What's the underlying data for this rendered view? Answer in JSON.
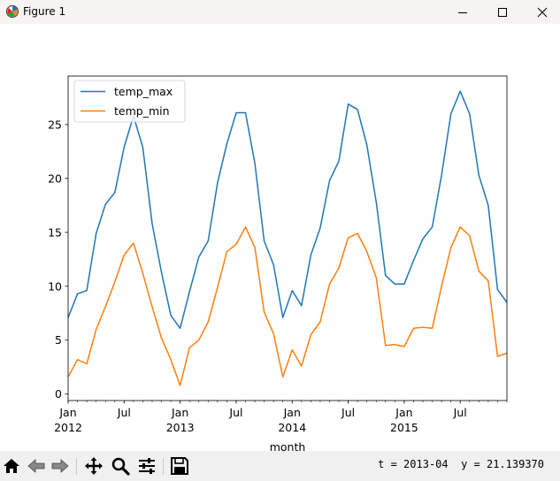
{
  "window": {
    "title": "Figure 1",
    "icon": "matplotlib-logo-icon",
    "controls": [
      "minimize-icon",
      "maximize-icon",
      "close-icon"
    ]
  },
  "colors": {
    "temp_max": "#1f77b4",
    "temp_min": "#ff7f0e",
    "titlebar": "#f7f3f1",
    "toolbar": "#f0f0f0"
  },
  "chart_data": {
    "type": "line",
    "x_type": "monthly-dates",
    "x": [
      "2012-01",
      "2012-02",
      "2012-03",
      "2012-04",
      "2012-05",
      "2012-06",
      "2012-07",
      "2012-08",
      "2012-09",
      "2012-10",
      "2012-11",
      "2012-12",
      "2013-01",
      "2013-02",
      "2013-03",
      "2013-04",
      "2013-05",
      "2013-06",
      "2013-07",
      "2013-08",
      "2013-09",
      "2013-10",
      "2013-11",
      "2013-12",
      "2014-01",
      "2014-02",
      "2014-03",
      "2014-04",
      "2014-05",
      "2014-06",
      "2014-07",
      "2014-08",
      "2014-09",
      "2014-10",
      "2014-11",
      "2014-12",
      "2015-01",
      "2015-02",
      "2015-03",
      "2015-04",
      "2015-05",
      "2015-06",
      "2015-07",
      "2015-08",
      "2015-09",
      "2015-10",
      "2015-11",
      "2015-12"
    ],
    "series": [
      {
        "name": "temp_max",
        "color": "#1f77b4",
        "values": [
          7.1,
          9.3,
          9.6,
          14.9,
          17.6,
          18.7,
          22.9,
          25.8,
          22.9,
          15.8,
          11.3,
          7.3,
          6.1,
          9.5,
          12.7,
          14.2,
          19.6,
          23.2,
          26.1,
          26.1,
          21.4,
          14.2,
          12.0,
          7.1,
          9.6,
          8.2,
          12.9,
          15.4,
          19.8,
          21.6,
          26.9,
          26.4,
          23.1,
          17.8,
          11.0,
          10.2,
          10.2,
          12.4,
          14.4,
          15.5,
          20.3,
          26.0,
          28.1,
          26.0,
          20.3,
          17.5,
          9.7,
          8.5
        ]
      },
      {
        "name": "temp_min",
        "color": "#ff7f0e",
        "values": [
          1.6,
          3.2,
          2.8,
          6.0,
          8.1,
          10.4,
          12.9,
          14.0,
          11.2,
          8.1,
          5.2,
          3.2,
          0.8,
          4.3,
          5.0,
          6.7,
          9.9,
          13.2,
          13.9,
          15.5,
          13.6,
          7.6,
          5.6,
          1.6,
          4.1,
          2.6,
          5.5,
          6.7,
          10.2,
          11.7,
          14.5,
          14.9,
          13.2,
          10.8,
          4.5,
          4.6,
          4.4,
          6.1,
          6.2,
          6.1,
          10.0,
          13.6,
          15.5,
          14.7,
          11.4,
          10.5,
          3.5,
          3.8
        ]
      }
    ],
    "xlabel": "month",
    "ylabel": "",
    "xlim": [
      "2012-01",
      "2015-12"
    ],
    "ylim": [
      -0.6,
      29.5
    ],
    "yticks": [
      0,
      5,
      10,
      15,
      20,
      25
    ],
    "ytick_labels": [
      "0",
      "5",
      "10",
      "15",
      "20",
      "25"
    ],
    "xtick_major": [
      {
        "month": "Jan",
        "year": "2012",
        "x": "2012-01"
      },
      {
        "month": "Jul",
        "year": "",
        "x": "2012-07"
      },
      {
        "month": "Jan",
        "year": "2013",
        "x": "2013-01"
      },
      {
        "month": "Jul",
        "year": "",
        "x": "2013-07"
      },
      {
        "month": "Jan",
        "year": "2014",
        "x": "2014-01"
      },
      {
        "month": "Jul",
        "year": "",
        "x": "2014-07"
      },
      {
        "month": "Jan",
        "year": "2015",
        "x": "2015-01"
      },
      {
        "month": "Jul",
        "year": "",
        "x": "2015-07"
      }
    ],
    "grid": false,
    "legend_position": "upper-left"
  },
  "toolbar": {
    "buttons": [
      {
        "name": "home-button",
        "icon": "home-icon"
      },
      {
        "name": "back-button",
        "icon": "back-arrow-icon"
      },
      {
        "name": "forward-button",
        "icon": "forward-arrow-icon"
      },
      {
        "name": "pan-button",
        "icon": "pan-move-icon"
      },
      {
        "name": "zoom-button",
        "icon": "zoom-magnifier-icon"
      },
      {
        "name": "configure-subplots-button",
        "icon": "sliders-icon"
      },
      {
        "name": "save-button",
        "icon": "floppy-disk-icon"
      }
    ],
    "status": "t = 2013-04  y = 21.139370"
  }
}
